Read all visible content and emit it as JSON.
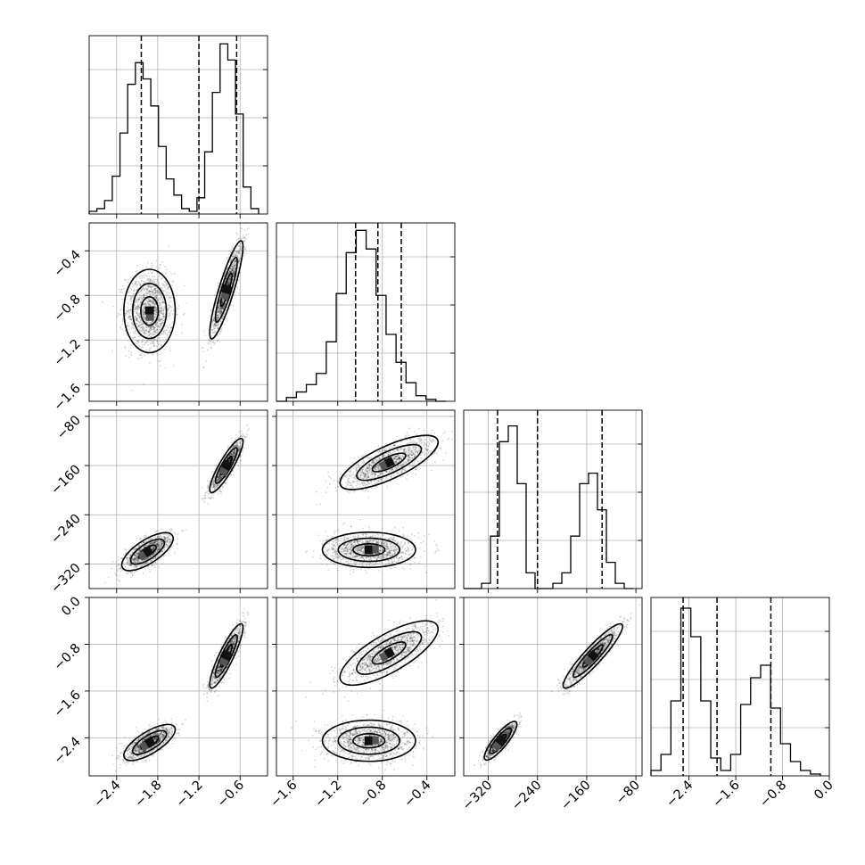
{
  "chart_data": {
    "type": "corner",
    "title": "",
    "grid": true,
    "parameters": [
      {
        "range": [
          -2.8,
          -0.2
        ],
        "ticks": [
          -2.4,
          -1.8,
          -1.2,
          -0.6
        ],
        "tick_labels": [
          "−2.4",
          "−1.8",
          "−1.2",
          "−0.6"
        ],
        "quantiles": [
          -2.04,
          -1.2,
          -0.65
        ],
        "hist_ymax": 66,
        "hist_counts": [
          1,
          2,
          5,
          14,
          30,
          48,
          56,
          50,
          40,
          25,
          13,
          7,
          2,
          1,
          6,
          23,
          45,
          63,
          57,
          37,
          10,
          2
        ]
      },
      {
        "range": [
          -1.75,
          -0.15
        ],
        "ticks": [
          -1.6,
          -1.2,
          -0.8,
          -0.4
        ],
        "tick_labels": [
          "−1.6",
          "−1.2",
          "−0.8",
          "−0.4"
        ],
        "quantiles": [
          -1.04,
          -0.84,
          -0.63
        ],
        "hist_ymax": 96,
        "hist_counts": [
          0,
          2,
          5,
          9,
          15,
          32,
          58,
          80,
          92,
          82,
          57,
          36,
          21,
          10,
          3,
          1,
          0
        ]
      },
      {
        "range": [
          -360,
          -70
        ],
        "ticks": [
          -320,
          -240,
          -160,
          -80
        ],
        "tick_labels": [
          "−320",
          "−240",
          "−160",
          "−80"
        ],
        "quantiles": [
          -305,
          -240,
          -135
        ],
        "hist_ymax": 34,
        "hist_counts": [
          0,
          0,
          1,
          10,
          28,
          31,
          20,
          3,
          0,
          0,
          1,
          3,
          10,
          20,
          22,
          15,
          5,
          1,
          0
        ]
      },
      {
        "range": [
          -3.05,
          0.0
        ],
        "ticks": [
          -2.4,
          -1.6,
          -0.8,
          0.0
        ],
        "tick_labels": [
          "−2.4",
          "−1.6",
          "−0.8",
          "0.0"
        ],
        "quantiles": [
          -2.5,
          -1.92,
          -1.0
        ],
        "hist_ymax": 100,
        "hist_counts": [
          3,
          12,
          42,
          94,
          78,
          42,
          10,
          3,
          12,
          40,
          55,
          62,
          38,
          18,
          8,
          3,
          1
        ]
      }
    ],
    "pairs": [
      {
        "x": 0,
        "y": 1,
        "modes": [
          {
            "cx": -1.92,
            "cy": -0.94,
            "sx": 0.17,
            "sy": 0.17,
            "rho": 0.0,
            "n": 1500
          },
          {
            "cx": -0.8,
            "cy": -0.75,
            "sx": 0.11,
            "sy": 0.2,
            "rho": 0.88,
            "n": 1500
          }
        ]
      },
      {
        "x": 0,
        "y": 2,
        "modes": [
          {
            "cx": -1.95,
            "cy": -300,
            "sx": 0.17,
            "sy": 14,
            "rho": 0.7,
            "n": 1300
          },
          {
            "cx": -0.8,
            "cy": -160,
            "sx": 0.11,
            "sy": 20,
            "rho": 0.88,
            "n": 1300
          }
        ]
      },
      {
        "x": 1,
        "y": 2,
        "modes": [
          {
            "cx": -0.92,
            "cy": -297,
            "sx": 0.19,
            "sy": 13,
            "rho": 0.0,
            "n": 1300
          },
          {
            "cx": -0.74,
            "cy": -155,
            "sx": 0.2,
            "sy": 20,
            "rho": 0.75,
            "n": 1300
          }
        ]
      },
      {
        "x": 0,
        "y": 3,
        "modes": [
          {
            "cx": -1.92,
            "cy": -2.48,
            "sx": 0.17,
            "sy": 0.14,
            "rho": 0.72,
            "n": 1300
          },
          {
            "cx": -0.8,
            "cy": -1.0,
            "sx": 0.11,
            "sy": 0.25,
            "rho": 0.88,
            "n": 1300
          }
        ]
      },
      {
        "x": 1,
        "y": 3,
        "modes": [
          {
            "cx": -0.92,
            "cy": -2.45,
            "sx": 0.19,
            "sy": 0.16,
            "rho": 0.0,
            "n": 1300
          },
          {
            "cx": -0.74,
            "cy": -0.95,
            "sx": 0.2,
            "sy": 0.25,
            "rho": 0.75,
            "n": 1300
          }
        ]
      },
      {
        "x": 2,
        "y": 3,
        "modes": [
          {
            "cx": -300,
            "cy": -2.45,
            "sx": 12,
            "sy": 0.15,
            "rho": 0.85,
            "n": 1300
          },
          {
            "cx": -150,
            "cy": -1.0,
            "sx": 22,
            "sy": 0.25,
            "rho": 0.92,
            "n": 1300
          }
        ]
      }
    ]
  }
}
